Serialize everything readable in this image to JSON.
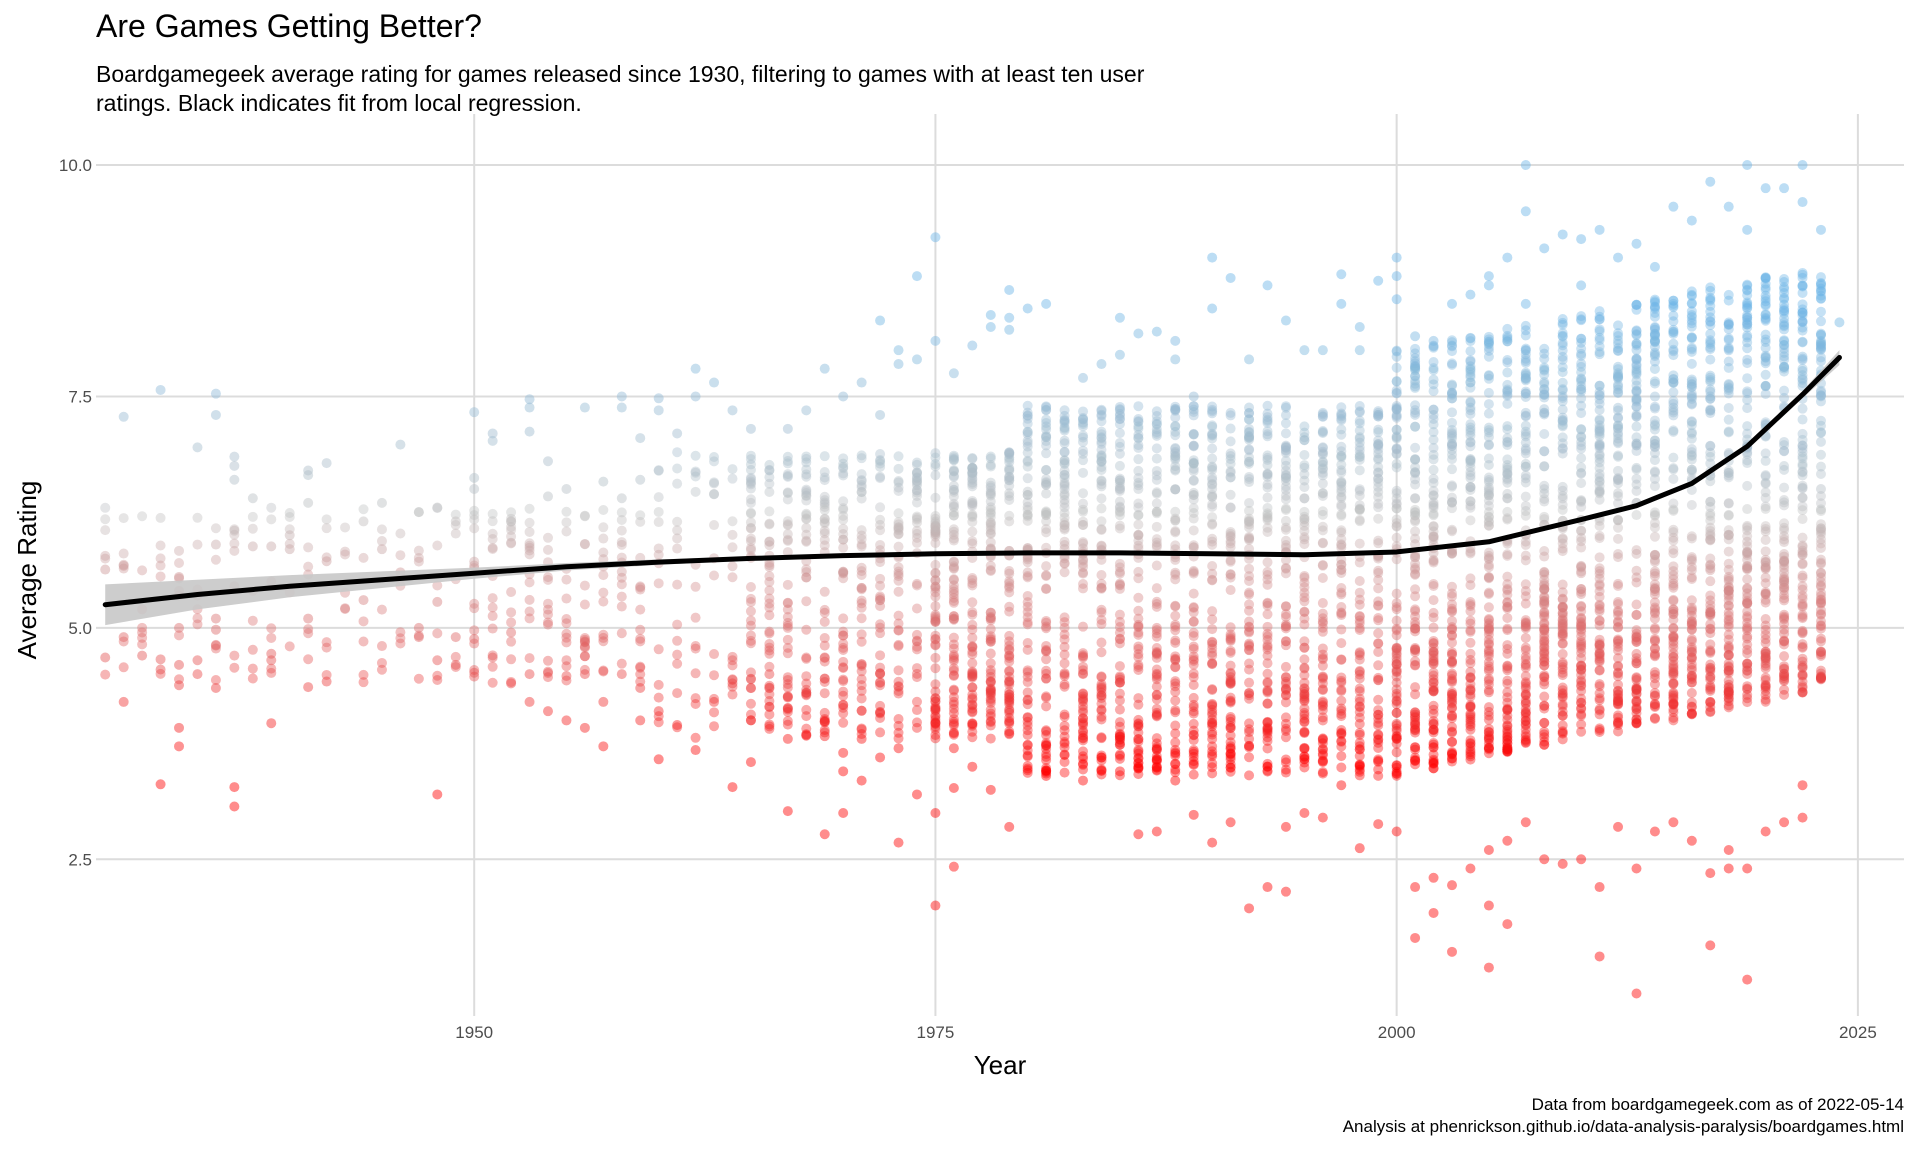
{
  "chart_data": {
    "type": "scatter",
    "title": "Are Games Getting Better?",
    "subtitle": "Boardgamegeek average rating for games released since 1930, filtering to games with at least ten user ratings. Black indicates fit from local regression.",
    "xlabel": "Year",
    "ylabel": "Average Rating",
    "xlim": [
      1929.5,
      2027.5
    ],
    "ylim": [
      0.85,
      10.4
    ],
    "x_ticks": [
      1950,
      1975,
      2000,
      2025
    ],
    "x_tick_labels": [
      "1950",
      "1975",
      "2000",
      "2025"
    ],
    "y_ticks": [
      2.5,
      5.0,
      7.5,
      10.0
    ],
    "y_tick_labels": [
      "2.5",
      "5.0",
      "7.5",
      "10.0"
    ],
    "grid": true,
    "legend": "none",
    "colors": {
      "low": "#ff0000",
      "mid": "#c0c0c0",
      "high": "#6bb4e6",
      "fit": "#000000",
      "band": "#c8c8c8"
    },
    "color_scale": {
      "low_value": 3.5,
      "mid_value": 6.2,
      "high_value": 8.5
    },
    "series": [
      {
        "type": "scatter",
        "points": [
          [
            1930,
            4.68
          ],
          [
            1930,
            5.63
          ],
          [
            1931,
            4.2
          ],
          [
            1931,
            5.67
          ],
          [
            1931,
            7.28
          ],
          [
            1931,
            4.9
          ],
          [
            1932,
            5.2
          ],
          [
            1932,
            4.7
          ],
          [
            1933,
            7.57
          ],
          [
            1933,
            3.31
          ],
          [
            1933,
            4.55
          ],
          [
            1933,
            4.66
          ],
          [
            1934,
            3.72
          ],
          [
            1934,
            3.92
          ],
          [
            1934,
            4.38
          ],
          [
            1934,
            4.6
          ],
          [
            1934,
            5.0
          ],
          [
            1934,
            5.4
          ],
          [
            1934,
            5.55
          ],
          [
            1935,
            6.95
          ],
          [
            1935,
            4.5
          ],
          [
            1935,
            4.65
          ],
          [
            1935,
            5.35
          ],
          [
            1936,
            7.53
          ],
          [
            1936,
            7.3
          ],
          [
            1936,
            4.35
          ],
          [
            1936,
            4.98
          ],
          [
            1936,
            5.1
          ],
          [
            1936,
            5.9
          ],
          [
            1937,
            6.85
          ],
          [
            1937,
            6.75
          ],
          [
            1937,
            6.6
          ],
          [
            1937,
            3.28
          ],
          [
            1937,
            3.07
          ],
          [
            1937,
            5.45
          ],
          [
            1937,
            6.05
          ],
          [
            1938,
            6.4
          ],
          [
            1938,
            5.88
          ],
          [
            1938,
            5.4
          ],
          [
            1939,
            3.97
          ],
          [
            1939,
            4.65
          ],
          [
            1939,
            4.72
          ],
          [
            1939,
            5.5
          ],
          [
            1939,
            5.88
          ],
          [
            1940,
            5.85
          ],
          [
            1940,
            6.0
          ],
          [
            1941,
            6.7
          ],
          [
            1941,
            6.65
          ],
          [
            1941,
            6.35
          ],
          [
            1941,
            5.1
          ],
          [
            1941,
            4.36
          ],
          [
            1942,
            6.78
          ],
          [
            1942,
            5.72
          ],
          [
            1942,
            4.42
          ],
          [
            1944,
            6.15
          ],
          [
            1944,
            5.3
          ],
          [
            1945,
            5.85
          ],
          [
            1945,
            6.35
          ],
          [
            1946,
            6.98
          ],
          [
            1946,
            5.6
          ],
          [
            1947,
            6.25
          ],
          [
            1947,
            5.0
          ],
          [
            1947,
            4.9
          ],
          [
            1948,
            6.3
          ],
          [
            1948,
            5.28
          ],
          [
            1948,
            4.65
          ],
          [
            1948,
            3.2
          ],
          [
            1949,
            4.6
          ],
          [
            1949,
            4.9
          ],
          [
            1949,
            6.15
          ],
          [
            1950,
            6.62
          ],
          [
            1950,
            7.33
          ],
          [
            1950,
            6.5
          ],
          [
            1950,
            4.88
          ],
          [
            1951,
            7.1
          ],
          [
            1951,
            7.02
          ],
          [
            1951,
            4.68
          ],
          [
            1952,
            6.15
          ],
          [
            1952,
            4.95
          ],
          [
            1952,
            4.4
          ],
          [
            1953,
            7.47
          ],
          [
            1953,
            7.38
          ],
          [
            1953,
            7.12
          ],
          [
            1953,
            4.2
          ],
          [
            1953,
            4.5
          ],
          [
            1954,
            6.8
          ],
          [
            1954,
            6.42
          ],
          [
            1954,
            4.1
          ],
          [
            1955,
            6.5
          ],
          [
            1955,
            4.48
          ],
          [
            1955,
            4.0
          ],
          [
            1956,
            7.38
          ],
          [
            1956,
            3.92
          ],
          [
            1956,
            4.5
          ],
          [
            1956,
            4.8
          ],
          [
            1957,
            6.58
          ],
          [
            1957,
            3.72
          ],
          [
            1957,
            4.2
          ],
          [
            1958,
            7.5
          ],
          [
            1958,
            7.38
          ],
          [
            1958,
            6.4
          ],
          [
            1958,
            4.5
          ],
          [
            1959,
            7.05
          ],
          [
            1959,
            6.6
          ],
          [
            1959,
            4.0
          ],
          [
            1959,
            4.35
          ],
          [
            1960,
            7.48
          ],
          [
            1960,
            7.35
          ],
          [
            1960,
            3.58
          ],
          [
            1960,
            4.1
          ],
          [
            1961,
            7.1
          ],
          [
            1961,
            3.95
          ],
          [
            1962,
            7.8
          ],
          [
            1962,
            7.5
          ],
          [
            1962,
            3.68
          ],
          [
            1963,
            7.65
          ],
          [
            1963,
            4.2
          ],
          [
            1964,
            7.35
          ],
          [
            1964,
            3.28
          ],
          [
            1964,
            4.4
          ],
          [
            1965,
            7.15
          ],
          [
            1965,
            3.55
          ],
          [
            1965,
            4.0
          ],
          [
            1966,
            6.7
          ],
          [
            1966,
            4.5
          ],
          [
            1967,
            7.15
          ],
          [
            1967,
            3.02
          ],
          [
            1967,
            3.8
          ],
          [
            1968,
            7.35
          ],
          [
            1968,
            3.85
          ],
          [
            1968,
            4.3
          ],
          [
            1969,
            7.8
          ],
          [
            1969,
            2.77
          ],
          [
            1969,
            3.83
          ],
          [
            1970,
            7.5
          ],
          [
            1970,
            3.0
          ],
          [
            1970,
            3.45
          ],
          [
            1970,
            3.65
          ],
          [
            1971,
            7.65
          ],
          [
            1971,
            3.35
          ],
          [
            1971,
            3.8
          ],
          [
            1972,
            8.32
          ],
          [
            1972,
            3.6
          ],
          [
            1972,
            7.3
          ],
          [
            1973,
            8.0
          ],
          [
            1973,
            7.85
          ],
          [
            1973,
            2.68
          ],
          [
            1973,
            3.7
          ],
          [
            1974,
            8.8
          ],
          [
            1974,
            7.9
          ],
          [
            1974,
            3.2
          ],
          [
            1975,
            9.22
          ],
          [
            1975,
            8.1
          ],
          [
            1975,
            2.0
          ],
          [
            1975,
            3.0
          ],
          [
            1976,
            7.75
          ],
          [
            1976,
            2.42
          ],
          [
            1976,
            3.27
          ],
          [
            1976,
            3.7
          ],
          [
            1977,
            8.05
          ],
          [
            1977,
            3.5
          ],
          [
            1978,
            8.38
          ],
          [
            1978,
            8.25
          ],
          [
            1978,
            3.25
          ],
          [
            1979,
            8.65
          ],
          [
            1979,
            8.35
          ],
          [
            1979,
            8.22
          ],
          [
            1979,
            2.85
          ],
          [
            1980,
            8.45
          ],
          [
            1981,
            8.5
          ],
          [
            1981,
            3.4
          ],
          [
            1983,
            7.7
          ],
          [
            1983,
            3.35
          ],
          [
            1984,
            7.85
          ],
          [
            1984,
            3.6
          ],
          [
            1985,
            8.35
          ],
          [
            1985,
            7.95
          ],
          [
            1985,
            3.45
          ],
          [
            1986,
            8.18
          ],
          [
            1986,
            2.77
          ],
          [
            1987,
            8.2
          ],
          [
            1987,
            2.8
          ],
          [
            1988,
            8.1
          ],
          [
            1988,
            7.9
          ],
          [
            1988,
            3.35
          ],
          [
            1989,
            7.5
          ],
          [
            1989,
            2.98
          ],
          [
            1990,
            9.0
          ],
          [
            1990,
            8.45
          ],
          [
            1990,
            2.68
          ],
          [
            1991,
            8.78
          ],
          [
            1991,
            2.9
          ],
          [
            1992,
            7.9
          ],
          [
            1992,
            1.97
          ],
          [
            1993,
            8.7
          ],
          [
            1993,
            2.2
          ],
          [
            1993,
            3.5
          ],
          [
            1994,
            8.32
          ],
          [
            1994,
            2.15
          ],
          [
            1994,
            2.85
          ],
          [
            1995,
            8.0
          ],
          [
            1995,
            3.0
          ],
          [
            1996,
            8.0
          ],
          [
            1996,
            2.95
          ],
          [
            1997,
            8.82
          ],
          [
            1997,
            8.5
          ],
          [
            1997,
            3.3
          ],
          [
            1998,
            8.25
          ],
          [
            1998,
            8.0
          ],
          [
            1998,
            2.62
          ],
          [
            1999,
            8.75
          ],
          [
            1999,
            2.88
          ],
          [
            2000,
            9.0
          ],
          [
            2000,
            8.8
          ],
          [
            2000,
            8.55
          ],
          [
            2000,
            2.8
          ],
          [
            2001,
            8.15
          ],
          [
            2001,
            1.65
          ],
          [
            2001,
            2.2
          ],
          [
            2002,
            8.1
          ],
          [
            2002,
            1.92
          ],
          [
            2002,
            2.3
          ],
          [
            2003,
            8.5
          ],
          [
            2003,
            1.5
          ],
          [
            2003,
            2.22
          ],
          [
            2004,
            8.6
          ],
          [
            2004,
            2.4
          ],
          [
            2005,
            8.8
          ],
          [
            2005,
            8.7
          ],
          [
            2005,
            1.33
          ],
          [
            2005,
            2.0
          ],
          [
            2005,
            2.6
          ],
          [
            2006,
            9.0
          ],
          [
            2006,
            1.8
          ],
          [
            2006,
            2.7
          ],
          [
            2007,
            10.0
          ],
          [
            2007,
            9.5
          ],
          [
            2007,
            8.5
          ],
          [
            2007,
            2.9
          ],
          [
            2008,
            9.1
          ],
          [
            2008,
            2.5
          ],
          [
            2009,
            9.25
          ],
          [
            2009,
            2.45
          ],
          [
            2010,
            9.2
          ],
          [
            2010,
            8.7
          ],
          [
            2010,
            2.5
          ],
          [
            2011,
            9.3
          ],
          [
            2011,
            2.2
          ],
          [
            2011,
            1.45
          ],
          [
            2012,
            9.0
          ],
          [
            2012,
            2.85
          ],
          [
            2013,
            9.15
          ],
          [
            2013,
            1.05
          ],
          [
            2013,
            2.4
          ],
          [
            2014,
            8.9
          ],
          [
            2014,
            2.8
          ],
          [
            2015,
            9.55
          ],
          [
            2015,
            2.9
          ],
          [
            2016,
            9.4
          ],
          [
            2016,
            2.7
          ],
          [
            2017,
            9.82
          ],
          [
            2017,
            1.57
          ],
          [
            2017,
            2.35
          ],
          [
            2018,
            9.55
          ],
          [
            2018,
            2.4
          ],
          [
            2018,
            2.6
          ],
          [
            2019,
            10.0
          ],
          [
            2019,
            9.3
          ],
          [
            2019,
            1.2
          ],
          [
            2019,
            2.4
          ],
          [
            2020,
            9.75
          ],
          [
            2020,
            2.8
          ],
          [
            2021,
            9.75
          ],
          [
            2021,
            2.9
          ],
          [
            2022,
            10.0
          ],
          [
            2022,
            9.6
          ],
          [
            2022,
            2.95
          ],
          [
            2022,
            3.3
          ],
          [
            2023,
            9.3
          ],
          [
            2023,
            6.5
          ],
          [
            2023,
            6.28
          ],
          [
            2023,
            5.27
          ],
          [
            2024,
            8.3
          ]
        ]
      },
      {
        "type": "line",
        "x": [
          1930,
          1935,
          1940,
          1945,
          1950,
          1955,
          1960,
          1965,
          1970,
          1975,
          1980,
          1985,
          1990,
          1995,
          2000,
          2005,
          2010,
          2013,
          2016,
          2019,
          2022,
          2024
        ],
        "y": [
          5.25,
          5.36,
          5.45,
          5.52,
          5.59,
          5.66,
          5.71,
          5.75,
          5.78,
          5.8,
          5.81,
          5.81,
          5.8,
          5.79,
          5.82,
          5.93,
          6.17,
          6.32,
          6.56,
          6.96,
          7.52,
          7.92
        ],
        "lower": [
          5.03,
          5.2,
          5.33,
          5.43,
          5.53,
          5.62,
          5.68,
          5.73,
          5.77,
          5.79,
          5.8,
          5.8,
          5.79,
          5.78,
          5.81,
          5.92,
          6.16,
          6.3,
          6.54,
          6.93,
          7.48,
          7.84
        ],
        "upper": [
          5.47,
          5.52,
          5.57,
          5.61,
          5.65,
          5.7,
          5.74,
          5.77,
          5.79,
          5.81,
          5.82,
          5.82,
          5.81,
          5.8,
          5.83,
          5.94,
          6.18,
          6.34,
          6.58,
          6.99,
          7.56,
          8.0
        ]
      }
    ]
  },
  "caption": {
    "line1": "Data from boardgamegeek.com as of 2022-05-14",
    "line2": "Analysis at phenrickson.github.io/data-analysis-paralysis/boardgames.html"
  }
}
